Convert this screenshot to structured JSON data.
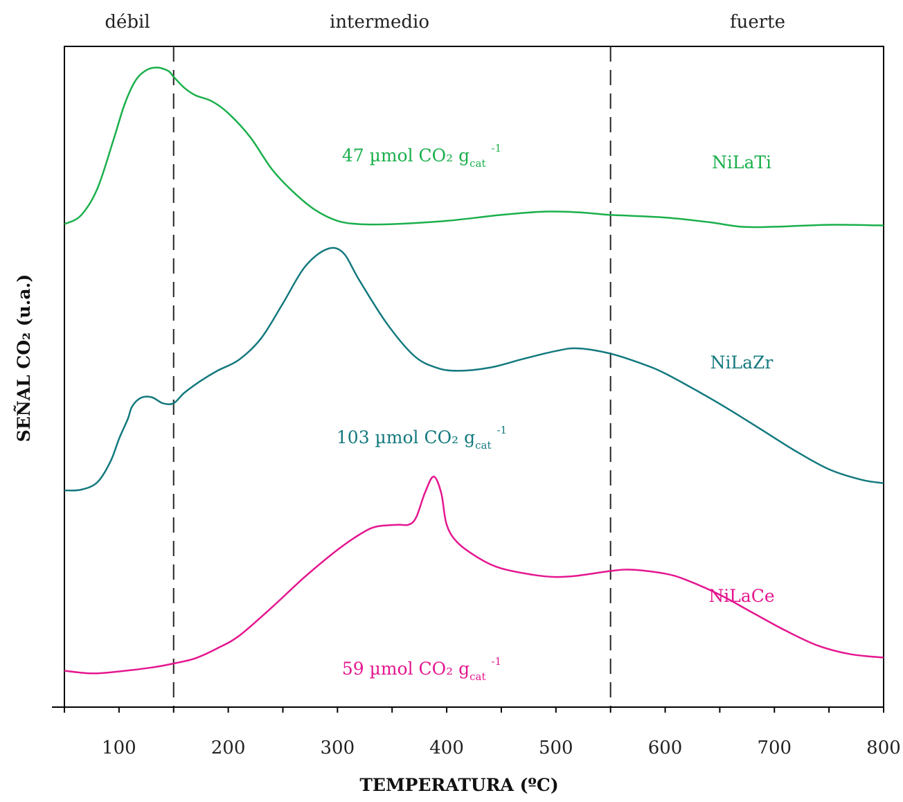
{
  "chart_data": {
    "type": "line",
    "title": "",
    "xlabel": "TEMPERATURA (ºC)",
    "ylabel": "SEÑAL CO₂ (u.a.)",
    "xlim": [
      50,
      800
    ],
    "xticks": [
      100,
      200,
      300,
      400,
      500,
      600,
      700,
      800
    ],
    "ylim": [
      0,
      100
    ],
    "grid": false,
    "legend": "none",
    "regions": [
      {
        "label": "débil",
        "x_from": 50,
        "x_to": 150
      },
      {
        "label": "intermedio",
        "x_from": 150,
        "x_to": 550
      },
      {
        "label": "fuerte",
        "x_from": 550,
        "x_to": 800
      }
    ],
    "dividers": [
      150,
      550
    ],
    "series": [
      {
        "name": "NiLaTi",
        "color": "#1aaf4b",
        "annotation": {
          "main": "47 µmol CO₂ g",
          "sub": "cat",
          "sup": "-1"
        },
        "points": [
          [
            50,
            73.1
          ],
          [
            65,
            74.4
          ],
          [
            80,
            78.4
          ],
          [
            95,
            85.9
          ],
          [
            105,
            91.2
          ],
          [
            115,
            94.8
          ],
          [
            125,
            96.4
          ],
          [
            135,
            96.8
          ],
          [
            145,
            96.3
          ],
          [
            150,
            95.4
          ],
          [
            160,
            93.7
          ],
          [
            170,
            92.6
          ],
          [
            185,
            91.7
          ],
          [
            200,
            89.9
          ],
          [
            220,
            86.3
          ],
          [
            240,
            81.4
          ],
          [
            260,
            77.9
          ],
          [
            280,
            75.2
          ],
          [
            300,
            73.6
          ],
          [
            320,
            73.1
          ],
          [
            350,
            73.1
          ],
          [
            400,
            73.6
          ],
          [
            450,
            74.5
          ],
          [
            490,
            75.0
          ],
          [
            520,
            74.9
          ],
          [
            550,
            74.5
          ],
          [
            600,
            74.1
          ],
          [
            640,
            73.4
          ],
          [
            670,
            72.7
          ],
          [
            700,
            72.7
          ],
          [
            750,
            73.0
          ],
          [
            800,
            72.9
          ]
        ]
      },
      {
        "name": "NiLaZr",
        "color": "#13797e",
        "annotation": {
          "main": "103 µmol CO₂ g",
          "sub": "cat",
          "sup": "-1"
        },
        "points": [
          [
            50,
            32.8
          ],
          [
            65,
            32.9
          ],
          [
            80,
            34.0
          ],
          [
            92,
            37.1
          ],
          [
            100,
            40.6
          ],
          [
            108,
            43.6
          ],
          [
            112,
            45.5
          ],
          [
            120,
            46.8
          ],
          [
            130,
            46.9
          ],
          [
            140,
            46.0
          ],
          [
            150,
            46.0
          ],
          [
            160,
            47.6
          ],
          [
            175,
            49.4
          ],
          [
            190,
            50.9
          ],
          [
            210,
            52.6
          ],
          [
            230,
            55.8
          ],
          [
            250,
            61.1
          ],
          [
            270,
            66.6
          ],
          [
            290,
            69.3
          ],
          [
            305,
            68.8
          ],
          [
            320,
            64.6
          ],
          [
            345,
            58.1
          ],
          [
            370,
            53.2
          ],
          [
            390,
            51.4
          ],
          [
            410,
            50.9
          ],
          [
            440,
            51.4
          ],
          [
            470,
            52.7
          ],
          [
            500,
            53.9
          ],
          [
            520,
            54.3
          ],
          [
            550,
            53.5
          ],
          [
            580,
            51.9
          ],
          [
            600,
            50.5
          ],
          [
            630,
            47.8
          ],
          [
            660,
            44.9
          ],
          [
            690,
            41.8
          ],
          [
            720,
            38.7
          ],
          [
            750,
            36.0
          ],
          [
            780,
            34.4
          ],
          [
            800,
            33.9
          ]
        ]
      },
      {
        "name": "NiLaCe",
        "color": "#e4168f",
        "annotation": {
          "main": "59 µmol CO₂ g",
          "sub": "cat",
          "sup": "-1"
        },
        "points": [
          [
            50,
            5.5
          ],
          [
            75,
            5.1
          ],
          [
            100,
            5.4
          ],
          [
            130,
            6.0
          ],
          [
            150,
            6.6
          ],
          [
            170,
            7.4
          ],
          [
            190,
            8.9
          ],
          [
            210,
            10.8
          ],
          [
            240,
            15.1
          ],
          [
            270,
            19.7
          ],
          [
            300,
            23.8
          ],
          [
            320,
            26.1
          ],
          [
            335,
            27.3
          ],
          [
            355,
            27.6
          ],
          [
            365,
            27.6
          ],
          [
            372,
            28.7
          ],
          [
            380,
            32.4
          ],
          [
            388,
            34.9
          ],
          [
            395,
            32.4
          ],
          [
            400,
            27.6
          ],
          [
            410,
            24.9
          ],
          [
            430,
            22.5
          ],
          [
            450,
            21.0
          ],
          [
            480,
            20.0
          ],
          [
            500,
            19.7
          ],
          [
            520,
            19.9
          ],
          [
            550,
            20.6
          ],
          [
            570,
            20.8
          ],
          [
            600,
            20.2
          ],
          [
            620,
            19.2
          ],
          [
            650,
            17.0
          ],
          [
            680,
            14.3
          ],
          [
            710,
            11.6
          ],
          [
            740,
            9.3
          ],
          [
            770,
            8.0
          ],
          [
            800,
            7.5
          ]
        ]
      }
    ]
  }
}
